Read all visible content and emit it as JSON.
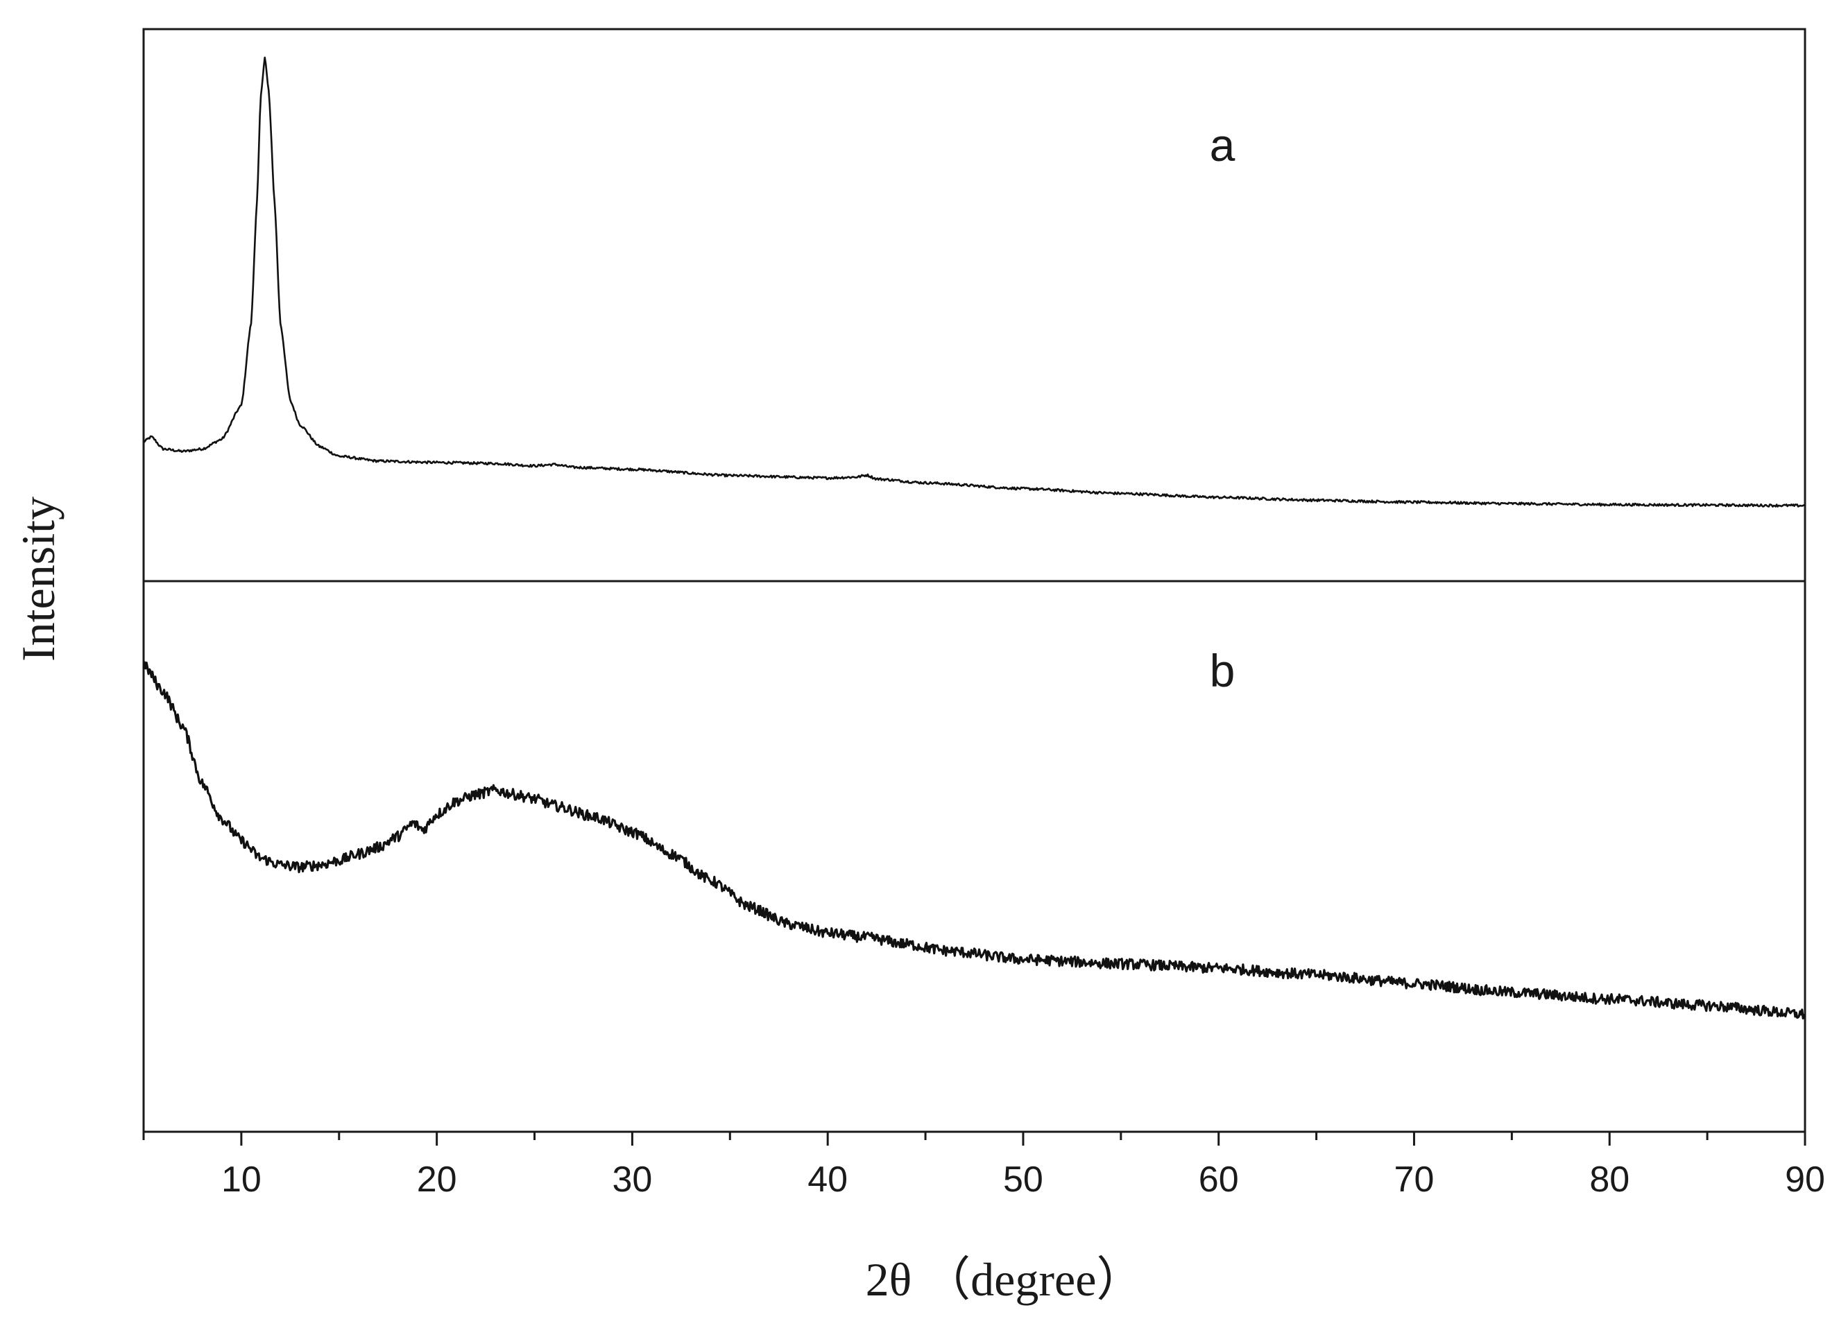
{
  "chart_data": {
    "type": "line",
    "xlabel": "2θ （degree）",
    "ylabel": "Intensity",
    "xlim": [
      5,
      90
    ],
    "x_ticks_major": [
      10,
      20,
      30,
      40,
      50,
      60,
      70,
      80,
      90
    ],
    "x_ticks_minor_step": 5,
    "y_ticks": [],
    "grid": false,
    "panels": [
      {
        "label": "a",
        "ylim": [
          0,
          1
        ],
        "series": [
          {
            "x": [
              5,
              5.4,
              6,
              7,
              8,
              9,
              10,
              10.5,
              10.8,
              11.0,
              11.2,
              11.4,
              11.7,
              12.0,
              12.5,
              13,
              14,
              15,
              17,
              20,
              23,
              25,
              26,
              27,
              30,
              35,
              40,
              41.5,
              42,
              42.5,
              45,
              50,
              55,
              60,
              65,
              70,
              75,
              80,
              85,
              90
            ],
            "y": [
              0.205,
              0.215,
              0.19,
              0.185,
              0.19,
              0.21,
              0.28,
              0.45,
              0.7,
              0.92,
              1.0,
              0.93,
              0.7,
              0.45,
              0.29,
              0.24,
              0.195,
              0.175,
              0.165,
              0.162,
              0.16,
              0.155,
              0.158,
              0.152,
              0.148,
              0.135,
              0.13,
              0.132,
              0.136,
              0.128,
              0.12,
              0.108,
              0.098,
              0.09,
              0.084,
              0.08,
              0.077,
              0.075,
              0.074,
              0.073
            ]
          }
        ]
      },
      {
        "label": "b",
        "ylim": [
          0,
          1
        ],
        "series": [
          {
            "x": [
              5,
              6,
              7,
              8,
              9,
              10,
              11,
              12,
              13,
              14,
              15,
              16,
              17,
              18,
              18.8,
              19.3,
              20,
              21,
              22,
              23,
              24,
              25,
              26,
              28,
              30,
              32,
              34,
              36,
              38,
              40,
              42,
              44,
              46,
              50,
              55,
              60,
              65,
              70,
              75,
              80,
              85,
              90
            ],
            "y": [
              0.92,
              0.86,
              0.78,
              0.65,
              0.57,
              0.52,
              0.48,
              0.465,
              0.46,
              0.465,
              0.475,
              0.49,
              0.505,
              0.53,
              0.56,
              0.545,
              0.58,
              0.61,
              0.625,
              0.635,
              0.625,
              0.615,
              0.6,
              0.575,
              0.54,
              0.49,
              0.43,
              0.37,
              0.33,
              0.31,
              0.3,
              0.285,
              0.27,
              0.25,
              0.24,
              0.23,
              0.215,
              0.195,
              0.175,
              0.16,
              0.145,
              0.125
            ]
          }
        ]
      }
    ]
  }
}
